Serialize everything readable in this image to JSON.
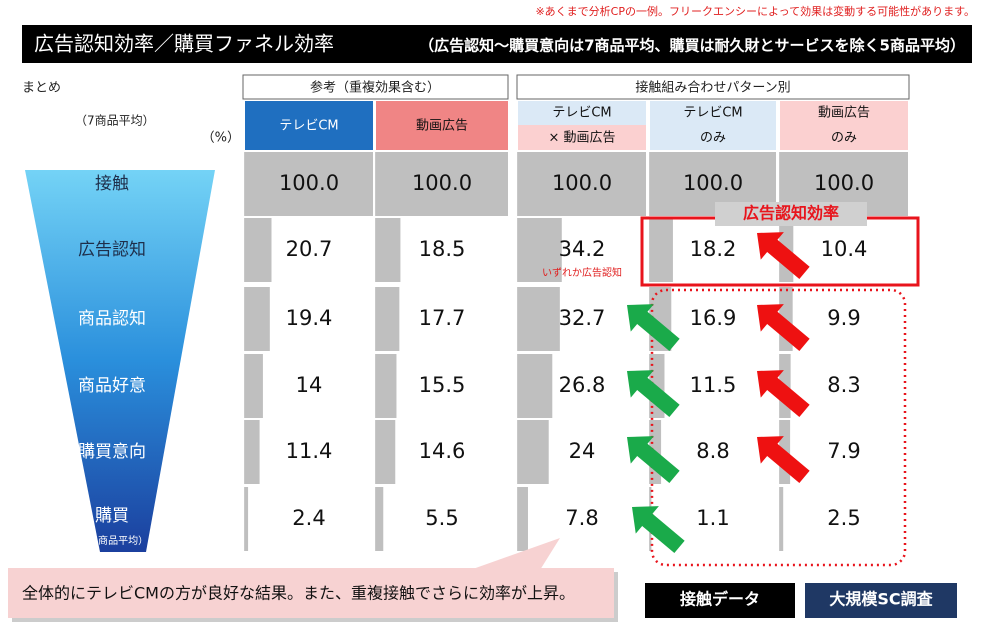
{
  "note": "※あくまで分析CPの一例。フリークエンシーによって効果は変動する可能性があります。",
  "header": {
    "title": "広告認知効率／購買ファネル効率",
    "subtitle": "（広告認知～購買意向は7商品平均、購買は耐久財とサービスを除く5商品平均）"
  },
  "summary_label": "まとめ",
  "average_label": "（7商品平均）",
  "unit_label": "（%）",
  "groups": [
    {
      "label": "参考（重複効果含む）"
    },
    {
      "label": "接触組み合わせパターン別"
    }
  ],
  "columns": [
    {
      "lines": [
        "テレビCM"
      ]
    },
    {
      "lines": [
        "動画広告"
      ]
    },
    {
      "lines": [
        "テレビCM",
        "× 動画広告"
      ]
    },
    {
      "lines": [
        "テレビCM",
        "のみ"
      ]
    },
    {
      "lines": [
        "動画広告",
        "のみ"
      ]
    }
  ],
  "rows": [
    {
      "label": "接触",
      "values": [
        100,
        100,
        100,
        100,
        100
      ],
      "value_labels": [
        "100.0",
        "100.0",
        "100.0",
        "100.0",
        "100.0"
      ]
    },
    {
      "label": "広告認知",
      "values": [
        20.7,
        18.5,
        34.2,
        18.2,
        10.4
      ]
    },
    {
      "label": "商品認知",
      "values": [
        19.4,
        17.7,
        32.7,
        16.9,
        9.9
      ]
    },
    {
      "label": "商品好意",
      "values": [
        14.0,
        15.5,
        26.8,
        11.5,
        8.3
      ]
    },
    {
      "label": "購買意向",
      "values": [
        11.4,
        14.6,
        24.0,
        8.8,
        7.9
      ]
    },
    {
      "label": "購買",
      "sublabel": "（5商品平均）",
      "values": [
        2.4,
        5.5,
        7.8,
        1.1,
        2.5
      ]
    }
  ],
  "either_label": "いずれか広告認知",
  "efficiency_label": "広告認知効率",
  "comment": "全体的にテレビCMの方が良好な結果。また、重複接触でさらに効率が上昇。",
  "badges": [
    "接触データ",
    "大規模SC調査"
  ]
}
